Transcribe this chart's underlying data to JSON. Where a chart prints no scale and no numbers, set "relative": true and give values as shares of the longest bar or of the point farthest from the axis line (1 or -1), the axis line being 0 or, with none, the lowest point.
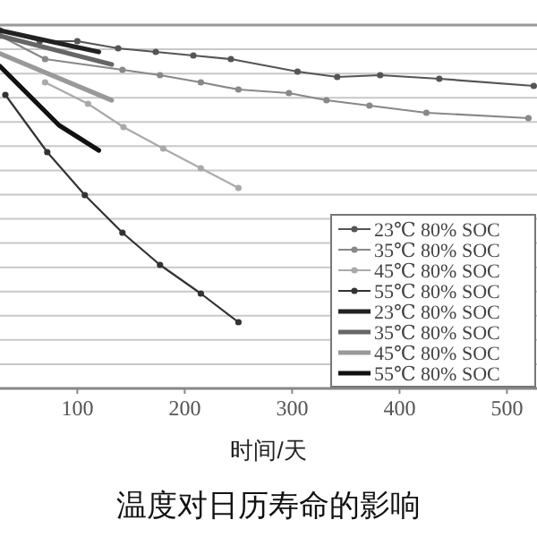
{
  "chart_data": {
    "type": "line",
    "title": "温度对日历寿命的影响",
    "xlabel": "时间/天",
    "relative": true,
    "xlim": [
      28,
      528
    ],
    "xticks": [
      100,
      200,
      300,
      400,
      500
    ],
    "grid": "y",
    "legend": "bottom right",
    "series": [
      {
        "name": "23℃ 80% SOC",
        "color": "#555555",
        "marker": "circle",
        "x": [
          28,
          65,
          100,
          138,
          173,
          208,
          243,
          305,
          342,
          382,
          437,
          525
        ],
        "values": [
          1.0,
          0.97,
          0.97,
          0.95,
          0.94,
          0.93,
          0.92,
          0.885,
          0.87,
          0.875,
          0.865,
          0.845
        ]
      },
      {
        "name": "35℃ 80% SOC",
        "color": "#888888",
        "marker": "circle",
        "x": [
          28,
          70,
          142,
          177,
          215,
          250,
          297,
          332,
          372,
          425,
          520
        ],
        "values": [
          0.985,
          0.92,
          0.89,
          0.875,
          0.855,
          0.835,
          0.825,
          0.805,
          0.79,
          0.77,
          0.755
        ]
      },
      {
        "name": "45℃ 80% SOC",
        "color": "#aaaaaa",
        "marker": "circle",
        "x": [
          70,
          110,
          143,
          180,
          215,
          250
        ],
        "values": [
          0.855,
          0.795,
          0.73,
          0.67,
          0.615,
          0.56
        ]
      },
      {
        "name": "55℃ 80% SOC",
        "color": "#333333",
        "marker": "circle",
        "x": [
          33,
          72,
          107,
          142,
          177,
          215,
          250
        ],
        "values": [
          0.82,
          0.66,
          0.54,
          0.435,
          0.345,
          0.265,
          0.185
        ]
      },
      {
        "name": "23℃ 80% SOC",
        "color": "#222222",
        "marker": "none",
        "x": [
          28,
          120
        ],
        "values": [
          1.0,
          0.94
        ]
      },
      {
        "name": "35℃ 80% SOC",
        "color": "#666666",
        "marker": "none",
        "x": [
          28,
          132
        ],
        "values": [
          0.985,
          0.905
        ]
      },
      {
        "name": "45℃ 80% SOC",
        "color": "#999999",
        "marker": "none",
        "x": [
          28,
          132
        ],
        "values": [
          0.935,
          0.805
        ]
      },
      {
        "name": "55℃ 80% SOC",
        "color": "#111111",
        "marker": "none",
        "x": [
          28,
          83,
          120
        ],
        "values": [
          0.9,
          0.735,
          0.665
        ]
      }
    ]
  }
}
